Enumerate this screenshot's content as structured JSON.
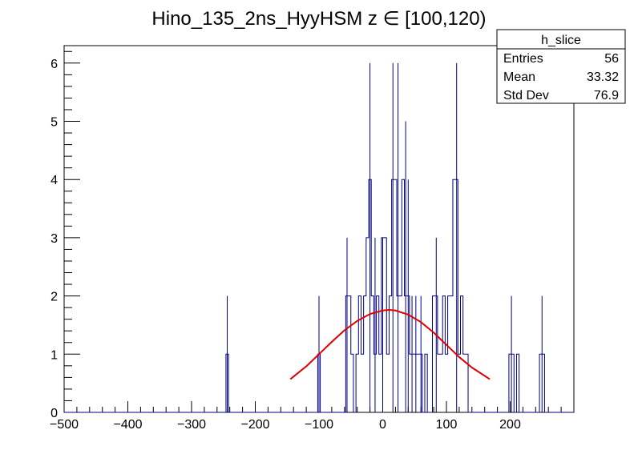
{
  "chart_data": {
    "type": "histogram",
    "title": "Hino_135_2ns_HyyHSM z  ∈ [100,120)",
    "xlabel": "",
    "ylabel": "",
    "xlim": [
      -500,
      300
    ],
    "ylim": [
      0,
      6.3
    ],
    "x_ticks": [
      -500,
      -400,
      -300,
      -200,
      -100,
      0,
      100,
      200
    ],
    "x_tick_labels": [
      "−500",
      "−400",
      "−300",
      "−200",
      "−100",
      "0",
      "100",
      "200"
    ],
    "y_ticks": [
      0,
      1,
      2,
      3,
      4,
      5,
      6
    ],
    "y_tick_labels": [
      "0",
      "1",
      "2",
      "3",
      "4",
      "5",
      "6"
    ],
    "bin_width": 4,
    "histogram_color": "#00007f",
    "fit_color": "#e00000",
    "histogram_outline": [
      [
        -500,
        0
      ],
      [
        -246,
        0
      ],
      [
        -246,
        1
      ],
      [
        -242,
        1
      ],
      [
        -242,
        0
      ],
      [
        -102,
        0
      ],
      [
        -102,
        1
      ],
      [
        -98,
        1
      ],
      [
        -98,
        0
      ],
      [
        -58,
        0
      ],
      [
        -58,
        2
      ],
      [
        -50,
        2
      ],
      [
        -50,
        1
      ],
      [
        -46,
        1
      ],
      [
        -46,
        0
      ],
      [
        -42,
        0
      ],
      [
        -42,
        1
      ],
      [
        -38,
        1
      ],
      [
        -38,
        2
      ],
      [
        -34,
        2
      ],
      [
        -34,
        1
      ],
      [
        -30,
        1
      ],
      [
        -30,
        2
      ],
      [
        -26,
        2
      ],
      [
        -26,
        3
      ],
      [
        -22,
        3
      ],
      [
        -22,
        4
      ],
      [
        -18,
        4
      ],
      [
        -18,
        2
      ],
      [
        -14,
        2
      ],
      [
        -14,
        1
      ],
      [
        -10,
        1
      ],
      [
        -10,
        2
      ],
      [
        -6,
        2
      ],
      [
        -6,
        1
      ],
      [
        -2,
        1
      ],
      [
        -2,
        3
      ],
      [
        6,
        3
      ],
      [
        6,
        1
      ],
      [
        10,
        1
      ],
      [
        10,
        2
      ],
      [
        14,
        2
      ],
      [
        14,
        4
      ],
      [
        22,
        4
      ],
      [
        22,
        2
      ],
      [
        30,
        2
      ],
      [
        30,
        4
      ],
      [
        34,
        4
      ],
      [
        34,
        2
      ],
      [
        42,
        2
      ],
      [
        42,
        1
      ],
      [
        50,
        1
      ],
      [
        50,
        1
      ],
      [
        58,
        1
      ],
      [
        58,
        1
      ],
      [
        62,
        1
      ],
      [
        62,
        0
      ],
      [
        66,
        0
      ],
      [
        66,
        1
      ],
      [
        70,
        1
      ],
      [
        70,
        0
      ],
      [
        78,
        0
      ],
      [
        78,
        2
      ],
      [
        86,
        2
      ],
      [
        86,
        1
      ],
      [
        94,
        1
      ],
      [
        94,
        2
      ],
      [
        98,
        2
      ],
      [
        98,
        1
      ],
      [
        102,
        1
      ],
      [
        102,
        2
      ],
      [
        110,
        2
      ],
      [
        110,
        4
      ],
      [
        118,
        4
      ],
      [
        118,
        1
      ],
      [
        122,
        1
      ],
      [
        122,
        2
      ],
      [
        126,
        2
      ],
      [
        126,
        1
      ],
      [
        134,
        1
      ],
      [
        134,
        0
      ],
      [
        198,
        0
      ],
      [
        198,
        1
      ],
      [
        206,
        1
      ],
      [
        206,
        0
      ],
      [
        210,
        0
      ],
      [
        210,
        1
      ],
      [
        214,
        1
      ],
      [
        214,
        0
      ],
      [
        246,
        0
      ],
      [
        246,
        1
      ],
      [
        254,
        1
      ],
      [
        254,
        0
      ],
      [
        300,
        0
      ]
    ],
    "spike_bins": [
      {
        "x": -244,
        "y": 2
      },
      {
        "x": -100,
        "y": 2
      },
      {
        "x": -56,
        "y": 3
      },
      {
        "x": -20,
        "y": 6
      },
      {
        "x": -12,
        "y": 3
      },
      {
        "x": 0,
        "y": 3
      },
      {
        "x": 16,
        "y": 6
      },
      {
        "x": 24,
        "y": 6
      },
      {
        "x": 36,
        "y": 5
      },
      {
        "x": 40,
        "y": 4
      },
      {
        "x": 46,
        "y": 2
      },
      {
        "x": 52,
        "y": 2
      },
      {
        "x": 60,
        "y": 2
      },
      {
        "x": 84,
        "y": 3
      },
      {
        "x": 116,
        "y": 6
      },
      {
        "x": 202,
        "y": 2
      },
      {
        "x": 250,
        "y": 2
      }
    ],
    "fit": {
      "type": "gaussian",
      "x_range": [
        -145,
        168
      ],
      "x": [
        -145,
        -120,
        -100,
        -80,
        -60,
        -40,
        -20,
        0,
        10,
        20,
        40,
        60,
        80,
        100,
        120,
        140,
        168
      ],
      "y": [
        0.57,
        0.79,
        1.0,
        1.21,
        1.41,
        1.57,
        1.69,
        1.75,
        1.76,
        1.75,
        1.68,
        1.55,
        1.37,
        1.16,
        0.95,
        0.77,
        0.57
      ]
    }
  },
  "stats_box": {
    "name": "h_slice",
    "rows": [
      {
        "label": "Entries",
        "value": "56"
      },
      {
        "label": "Mean",
        "value": "33.32"
      },
      {
        "label": "Std Dev",
        "value": "76.9"
      }
    ]
  }
}
